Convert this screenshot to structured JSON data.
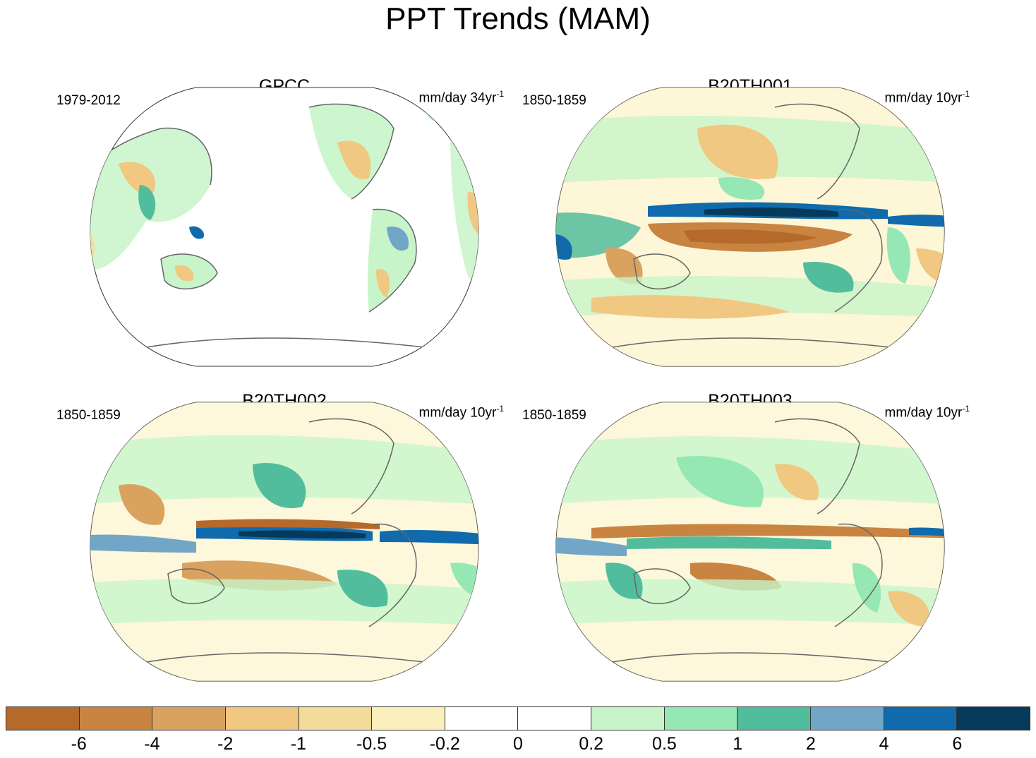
{
  "title": "PPT Trends (MAM)",
  "panels": [
    {
      "title": "GPCC",
      "period": "1979-2012",
      "units_base": "mm/day 34yr",
      "units_exp": "-1"
    },
    {
      "title": "B20TH001",
      "period": "1850-1859",
      "units_base": "mm/day 10yr",
      "units_exp": "-1"
    },
    {
      "title": "B20TH002",
      "period": "1850-1859",
      "units_base": "mm/day 10yr",
      "units_exp": "-1"
    },
    {
      "title": "B20TH003",
      "period": "1850-1859",
      "units_base": "mm/day 10yr",
      "units_exp": "-1"
    }
  ],
  "colorbar": {
    "colors": [
      "#b5692a",
      "#c98441",
      "#d9a25f",
      "#f0c881",
      "#f2dc9a",
      "#fbf0bd",
      "#ffffff",
      "#ffffff",
      "#c7f5c9",
      "#95e8b4",
      "#52bd9c",
      "#72a6c7",
      "#106aac",
      "#053a5a"
    ],
    "labels": [
      "-6",
      "-4",
      "-2",
      "-1",
      "-0.5",
      "-0.2",
      "0",
      "0.2",
      "0.5",
      "1",
      "2",
      "4",
      "6"
    ]
  }
}
